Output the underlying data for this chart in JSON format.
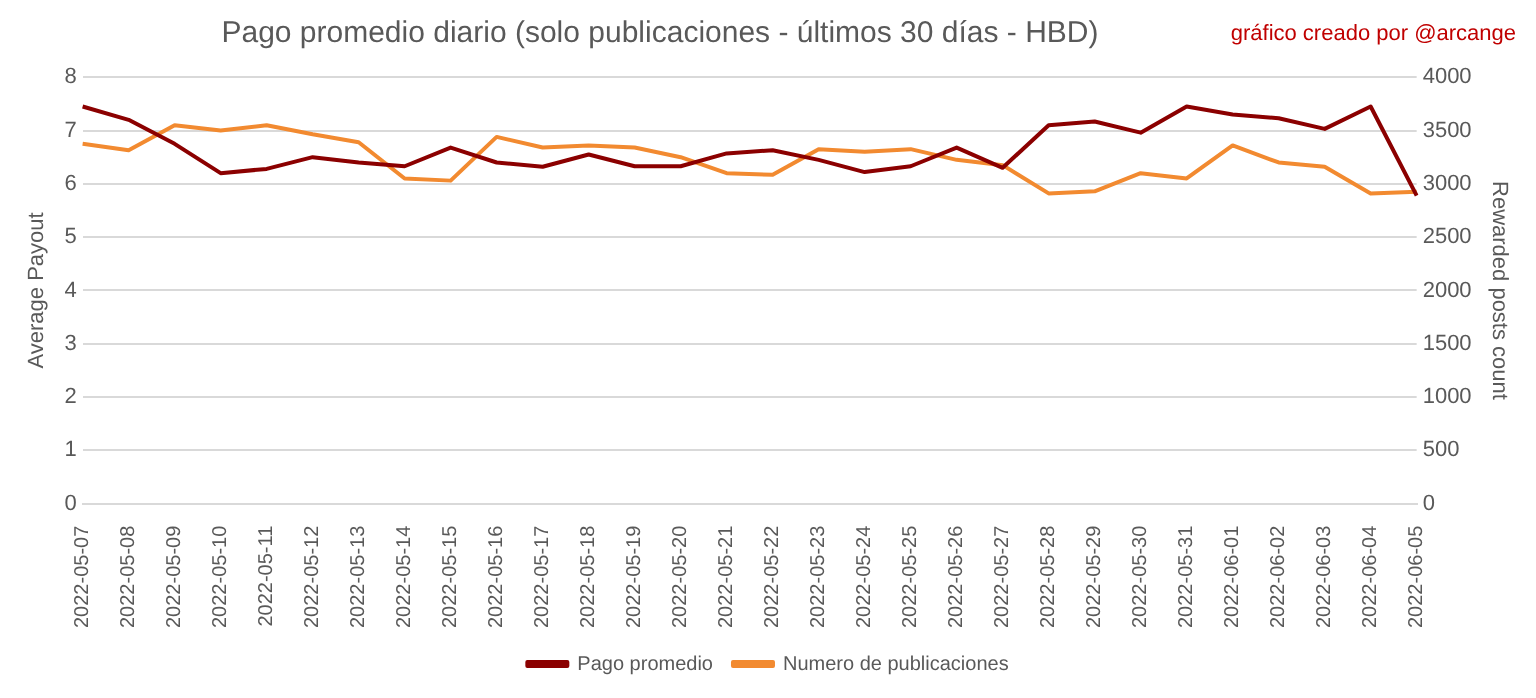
{
  "chart_data": {
    "type": "line",
    "title": "Pago promedio diario (solo publicaciones - últimos 30 días - HBD)",
    "annotations": [
      "gráfico creado por @arcange"
    ],
    "ylabel": "Average Payout",
    "y2label": "Rewarded posts count",
    "categories": [
      "2022-05-07",
      "2022-05-08",
      "2022-05-09",
      "2022-05-10",
      "2022-05-11",
      "2022-05-12",
      "2022-05-13",
      "2022-05-14",
      "2022-05-15",
      "2022-05-16",
      "2022-05-17",
      "2022-05-18",
      "2022-05-19",
      "2022-05-20",
      "2022-05-21",
      "2022-05-22",
      "2022-05-23",
      "2022-05-24",
      "2022-05-25",
      "2022-05-26",
      "2022-05-27",
      "2022-05-28",
      "2022-05-29",
      "2022-05-30",
      "2022-05-31",
      "2022-06-01",
      "2022-06-02",
      "2022-06-03",
      "2022-06-04",
      "2022-06-05"
    ],
    "series": [
      {
        "name": "Pago promedio",
        "color": "#8b0000",
        "values": [
          7.45,
          7.2,
          6.75,
          6.2,
          6.28,
          6.5,
          6.4,
          6.33,
          6.68,
          6.4,
          6.32,
          6.55,
          6.33,
          6.33,
          6.57,
          6.63,
          6.45,
          6.22,
          6.33,
          6.68,
          6.3,
          7.1,
          7.17,
          6.96,
          7.45,
          7.3,
          7.23,
          7.03,
          7.45,
          5.78
        ]
      },
      {
        "name": "Numero de publicaciones",
        "color": "#f28a30",
        "axis": "y2",
        "values": [
          3375,
          3315,
          3550,
          3500,
          3550,
          3465,
          3390,
          3050,
          3030,
          3440,
          3340,
          3360,
          3340,
          3250,
          3100,
          3085,
          3325,
          3300,
          3325,
          3225,
          3175,
          2910,
          2930,
          3100,
          3050,
          3360,
          3200,
          3160,
          2910,
          2925
        ]
      }
    ],
    "ylim": [
      0,
      8
    ],
    "yticks": [
      0,
      1,
      2,
      3,
      4,
      5,
      6,
      7,
      8
    ],
    "y2lim": [
      0,
      4000
    ],
    "y2ticks": [
      0,
      500,
      1000,
      1500,
      2000,
      2500,
      3000,
      3500,
      4000
    ],
    "grid": "y",
    "legend": "bottom",
    "marker": "none",
    "line_style": "solid"
  }
}
